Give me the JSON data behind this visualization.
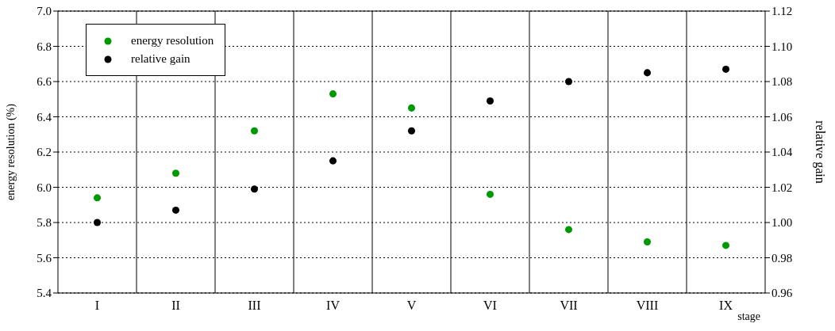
{
  "chart_data": {
    "type": "scatter",
    "xlabel": "stage",
    "ylabel": "energy resolution (%)",
    "y2label": "relative gain",
    "categories": [
      "I",
      "II",
      "III",
      "IV",
      "V",
      "VI",
      "VII",
      "VIII",
      "IX"
    ],
    "series": [
      {
        "name": "energy resolution",
        "color": "#009900",
        "values": [
          5.94,
          6.08,
          6.32,
          6.53,
          6.45,
          5.96,
          5.76,
          5.69,
          5.67
        ]
      },
      {
        "name": "relative gain",
        "color": "#000000",
        "axis": "y2",
        "values": [
          1.0,
          1.007,
          1.019,
          1.035,
          1.052,
          1.069,
          1.08,
          1.085,
          1.087
        ]
      }
    ],
    "ylim": [
      5.4,
      7.0
    ],
    "yticks": [
      5.4,
      5.6,
      5.8,
      {
        "value": 6.0,
        "label": "6.0"
      },
      6.2,
      6.4,
      6.6,
      6.8,
      {
        "value": 7.0,
        "label": "7.0"
      }
    ],
    "y2lim": [
      0.96,
      1.12
    ],
    "y2ticks": [
      0.96,
      0.98,
      {
        "value": 1.0,
        "label": "1.00"
      },
      1.02,
      1.04,
      1.06,
      1.08,
      {
        "value": 1.1,
        "label": "1.10"
      },
      1.12
    ],
    "grid": true,
    "legend": "top left",
    "marker": "circle"
  }
}
